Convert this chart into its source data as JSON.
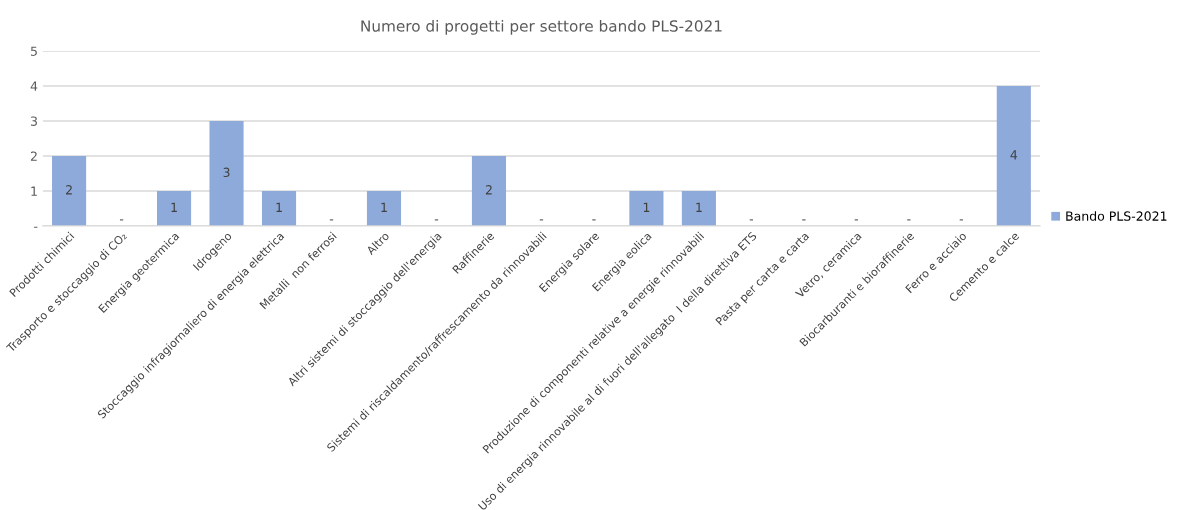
{
  "chart_data": {
    "type": "bar",
    "title": "Numero di progetti per settore bando PLS-2021",
    "categories": [
      "Prodotti chimici",
      "Trasporto e stoccaggio di CO₂",
      "Energia geotermica",
      "Idrogeno",
      "Stoccaggio infragiornaliero di energia elettrica",
      "Metalli  non ferrosi",
      "Altro",
      "Altri sistemi di stoccaggio dell'energia",
      "Raffinerie",
      "Sistemi di riscaldamento/raffrescamento da rinnovabili",
      "Energia solare",
      "Energia eolica",
      "Produzione di componenti relative a energie rinnovabili",
      "Uso di energia rinnovabile al di fuori dell'allegato  I della direttiva ETS",
      "Pasta per carta e carta",
      "Vetro, ceramica",
      "Biocarburanti e bioraffinerie",
      "Ferro e acciaio",
      "Cemento e calce"
    ],
    "series": [
      {
        "name": "Bando PLS-2021",
        "color": "#8eaadb",
        "values": [
          2,
          0,
          1,
          3,
          1,
          0,
          1,
          0,
          2,
          0,
          0,
          1,
          1,
          0,
          0,
          0,
          0,
          0,
          4
        ],
        "value_labels": [
          "2",
          "-",
          "1",
          "3",
          "1",
          "-",
          "1",
          "-",
          "2",
          "-",
          "-",
          "1",
          "1",
          "-",
          "-",
          "-",
          "-",
          "-",
          "4"
        ]
      }
    ],
    "ylim": [
      0,
      5
    ],
    "yticks": [
      {
        "value": 0,
        "label": "-"
      },
      1,
      2,
      3,
      4,
      5
    ],
    "grid": "y",
    "legend": "right"
  }
}
